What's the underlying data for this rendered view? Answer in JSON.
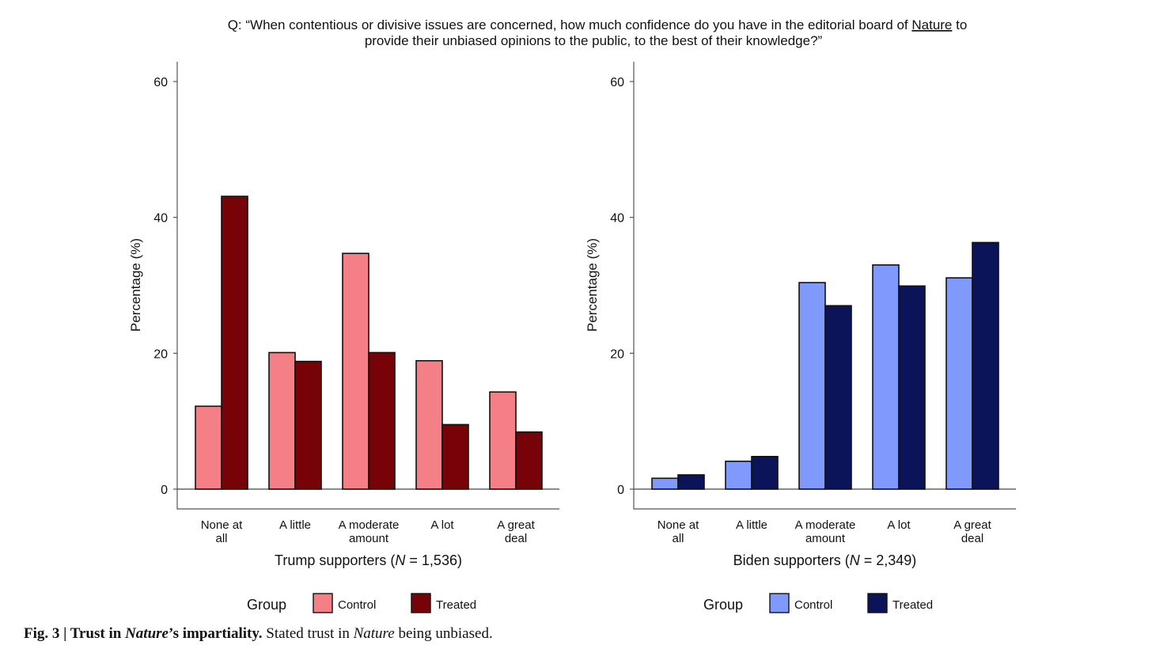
{
  "question": {
    "prefix": "Q: “When contentious or divisive issues are concerned, how much confidence do you have in the editorial board of ",
    "emph": "Nature",
    "suffix": " to",
    "line2": "provide their unbiased opinions to the public, to the best of their knowledge?”"
  },
  "caption": {
    "fig": "Fig. 3 | Trust in ",
    "fig_italic": "Nature",
    "fig_rest": "’s impartiality.",
    "text": " Stated trust in ",
    "text_italic": "Nature",
    "text_rest": " being unbiased."
  },
  "chart_data": [
    {
      "type": "bar",
      "title": "Trump supporters (N = 1,536)",
      "xlabel_prefix": "Trump supporters (",
      "xlabel_n": "N",
      "xlabel_suffix": " = 1,536)",
      "ylabel": "Percentage (%)",
      "ylim": [
        0,
        63
      ],
      "yticks": [
        "0",
        "20",
        "40",
        "60"
      ],
      "categories": [
        [
          "None at",
          "all"
        ],
        [
          "A little"
        ],
        [
          "A moderate",
          "amount"
        ],
        [
          "A lot"
        ],
        [
          "A great",
          "deal"
        ]
      ],
      "series": [
        {
          "name": "Control",
          "color": "#f47f86",
          "values": [
            12.2,
            20.1,
            34.7,
            18.9,
            14.3
          ]
        },
        {
          "name": "Treated",
          "color": "#770208",
          "values": [
            43.1,
            18.8,
            20.1,
            9.5,
            8.4
          ]
        }
      ],
      "legend": {
        "title": "Group",
        "position": "bottom"
      }
    },
    {
      "type": "bar",
      "title": "Biden supporters (N = 2,349)",
      "xlabel_prefix": "Biden supporters (",
      "xlabel_n": "N",
      "xlabel_suffix": " = 2,349)",
      "ylabel": "Percentage (%)",
      "ylim": [
        0,
        63
      ],
      "yticks": [
        "0",
        "20",
        "40",
        "60"
      ],
      "categories": [
        [
          "None at",
          "all"
        ],
        [
          "A little"
        ],
        [
          "A moderate",
          "amount"
        ],
        [
          "A lot"
        ],
        [
          "A great",
          "deal"
        ]
      ],
      "series": [
        {
          "name": "Control",
          "color": "#8099fd",
          "values": [
            1.6,
            4.1,
            30.4,
            33.0,
            31.1
          ]
        },
        {
          "name": "Treated",
          "color": "#0b1458",
          "values": [
            2.1,
            4.8,
            27.0,
            29.9,
            36.3
          ]
        }
      ],
      "legend": {
        "title": "Group",
        "position": "bottom"
      }
    }
  ]
}
